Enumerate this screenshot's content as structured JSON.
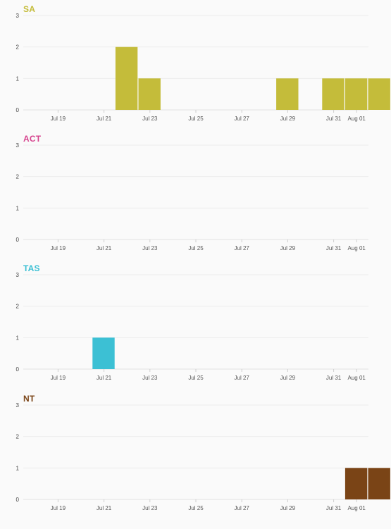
{
  "chart_data": [
    {
      "type": "bar",
      "title": "SA",
      "color": "#c4bc3a",
      "x": [
        "Jul 18",
        "Jul 19",
        "Jul 20",
        "Jul 21",
        "Jul 22",
        "Jul 23",
        "Jul 24",
        "Jul 25",
        "Jul 26",
        "Jul 27",
        "Jul 28",
        "Jul 29",
        "Jul 30",
        "Jul 31",
        "Aug 01",
        "Aug 02"
      ],
      "values": [
        0,
        0,
        0,
        0,
        2,
        1,
        0,
        0,
        0,
        0,
        0,
        1,
        0,
        1,
        1,
        1
      ],
      "xticks": [
        "Jul 19",
        "Jul 21",
        "Jul 23",
        "Jul 25",
        "Jul 27",
        "Jul 29",
        "Jul 31",
        "Aug 01"
      ],
      "yticks": [
        "0",
        "1",
        "2",
        "3"
      ],
      "ylim": [
        0,
        3
      ],
      "grid": true
    },
    {
      "type": "bar",
      "title": "ACT",
      "color": "#d6448e",
      "x": [
        "Jul 18",
        "Jul 19",
        "Jul 20",
        "Jul 21",
        "Jul 22",
        "Jul 23",
        "Jul 24",
        "Jul 25",
        "Jul 26",
        "Jul 27",
        "Jul 28",
        "Jul 29",
        "Jul 30",
        "Jul 31",
        "Aug 01",
        "Aug 02"
      ],
      "values": [
        0,
        0,
        0,
        0,
        0,
        0,
        0,
        0,
        0,
        0,
        0,
        0,
        0,
        0,
        0,
        0
      ],
      "xticks": [
        "Jul 19",
        "Jul 21",
        "Jul 23",
        "Jul 25",
        "Jul 27",
        "Jul 29",
        "Jul 31",
        "Aug 01"
      ],
      "yticks": [
        "0",
        "1",
        "2",
        "3"
      ],
      "ylim": [
        0,
        3
      ],
      "grid": true
    },
    {
      "type": "bar",
      "title": "TAS",
      "color": "#3cc0d4",
      "x": [
        "Jul 18",
        "Jul 19",
        "Jul 20",
        "Jul 21",
        "Jul 22",
        "Jul 23",
        "Jul 24",
        "Jul 25",
        "Jul 26",
        "Jul 27",
        "Jul 28",
        "Jul 29",
        "Jul 30",
        "Jul 31",
        "Aug 01",
        "Aug 02"
      ],
      "values": [
        0,
        0,
        0,
        1,
        0,
        0,
        0,
        0,
        0,
        0,
        0,
        0,
        0,
        0,
        0,
        0
      ],
      "xticks": [
        "Jul 19",
        "Jul 21",
        "Jul 23",
        "Jul 25",
        "Jul 27",
        "Jul 29",
        "Jul 31",
        "Aug 01"
      ],
      "yticks": [
        "0",
        "1",
        "2",
        "3"
      ],
      "ylim": [
        0,
        3
      ],
      "grid": true
    },
    {
      "type": "bar",
      "title": "NT",
      "color": "#7a4416",
      "x": [
        "Jul 18",
        "Jul 19",
        "Jul 20",
        "Jul 21",
        "Jul 22",
        "Jul 23",
        "Jul 24",
        "Jul 25",
        "Jul 26",
        "Jul 27",
        "Jul 28",
        "Jul 29",
        "Jul 30",
        "Jul 31",
        "Aug 01",
        "Aug 02"
      ],
      "values": [
        0,
        0,
        0,
        0,
        0,
        0,
        0,
        0,
        0,
        0,
        0,
        0,
        0,
        0,
        1,
        1
      ],
      "xticks": [
        "Jul 19",
        "Jul 21",
        "Jul 23",
        "Jul 25",
        "Jul 27",
        "Jul 29",
        "Jul 31",
        "Aug 01"
      ],
      "yticks": [
        "0",
        "1",
        "2",
        "3"
      ],
      "ylim": [
        0,
        3
      ],
      "grid": true
    }
  ]
}
